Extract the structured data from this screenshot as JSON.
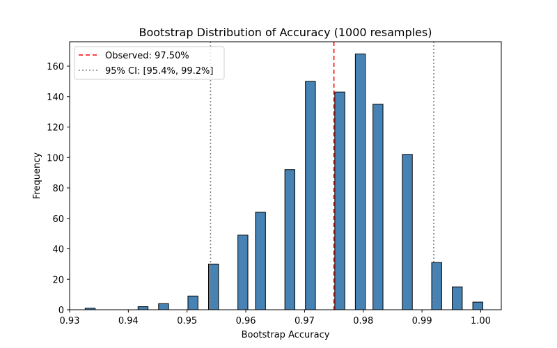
{
  "chart_data": {
    "type": "bar",
    "title": "Bootstrap Distribution of Accuracy (1000 resamples)",
    "xlabel": "Bootstrap Accuracy",
    "ylabel": "Frequency",
    "xlim": [
      0.93,
      1.0035
    ],
    "ylim": [
      0,
      176
    ],
    "xticks": [
      0.93,
      0.94,
      0.95,
      0.96,
      0.97,
      0.98,
      0.99,
      1.0
    ],
    "xtick_labels": [
      "0.93",
      "0.94",
      "0.95",
      "0.96",
      "0.97",
      "0.98",
      "0.99",
      "1.00"
    ],
    "yticks": [
      0,
      20,
      40,
      60,
      80,
      100,
      120,
      140,
      160
    ],
    "ytick_labels": [
      "0",
      "20",
      "40",
      "60",
      "80",
      "100",
      "120",
      "140",
      "160"
    ],
    "bar_width": 0.0017,
    "bar_color": "#4682b4",
    "bar_edge_color": "#000000",
    "bars": [
      {
        "x": 0.9335,
        "value": 1
      },
      {
        "x": 0.9425,
        "value": 2
      },
      {
        "x": 0.946,
        "value": 4
      },
      {
        "x": 0.951,
        "value": 9
      },
      {
        "x": 0.9545,
        "value": 30
      },
      {
        "x": 0.9595,
        "value": 49
      },
      {
        "x": 0.9625,
        "value": 64
      },
      {
        "x": 0.9675,
        "value": 92
      },
      {
        "x": 0.971,
        "value": 150
      },
      {
        "x": 0.976,
        "value": 143
      },
      {
        "x": 0.9795,
        "value": 168
      },
      {
        "x": 0.9825,
        "value": 135
      },
      {
        "x": 0.9875,
        "value": 102
      },
      {
        "x": 0.9925,
        "value": 31
      },
      {
        "x": 0.996,
        "value": 15
      },
      {
        "x": 0.9995,
        "value": 5
      }
    ],
    "reference_lines": [
      {
        "name": "observed",
        "x": 0.975,
        "color": "#ff0000",
        "style": "dashed"
      },
      {
        "name": "ci-lower",
        "x": 0.954,
        "color": "#808080",
        "style": "dotted"
      },
      {
        "name": "ci-upper",
        "x": 0.992,
        "color": "#808080",
        "style": "dotted"
      }
    ],
    "legend": {
      "placement": "top-left",
      "entries": [
        {
          "label": "Observed: 97.50%",
          "color": "#ff0000",
          "style": "dashed"
        },
        {
          "label": "95% CI: [95.4%, 99.2%]",
          "color": "#808080",
          "style": "dotted"
        }
      ]
    }
  }
}
